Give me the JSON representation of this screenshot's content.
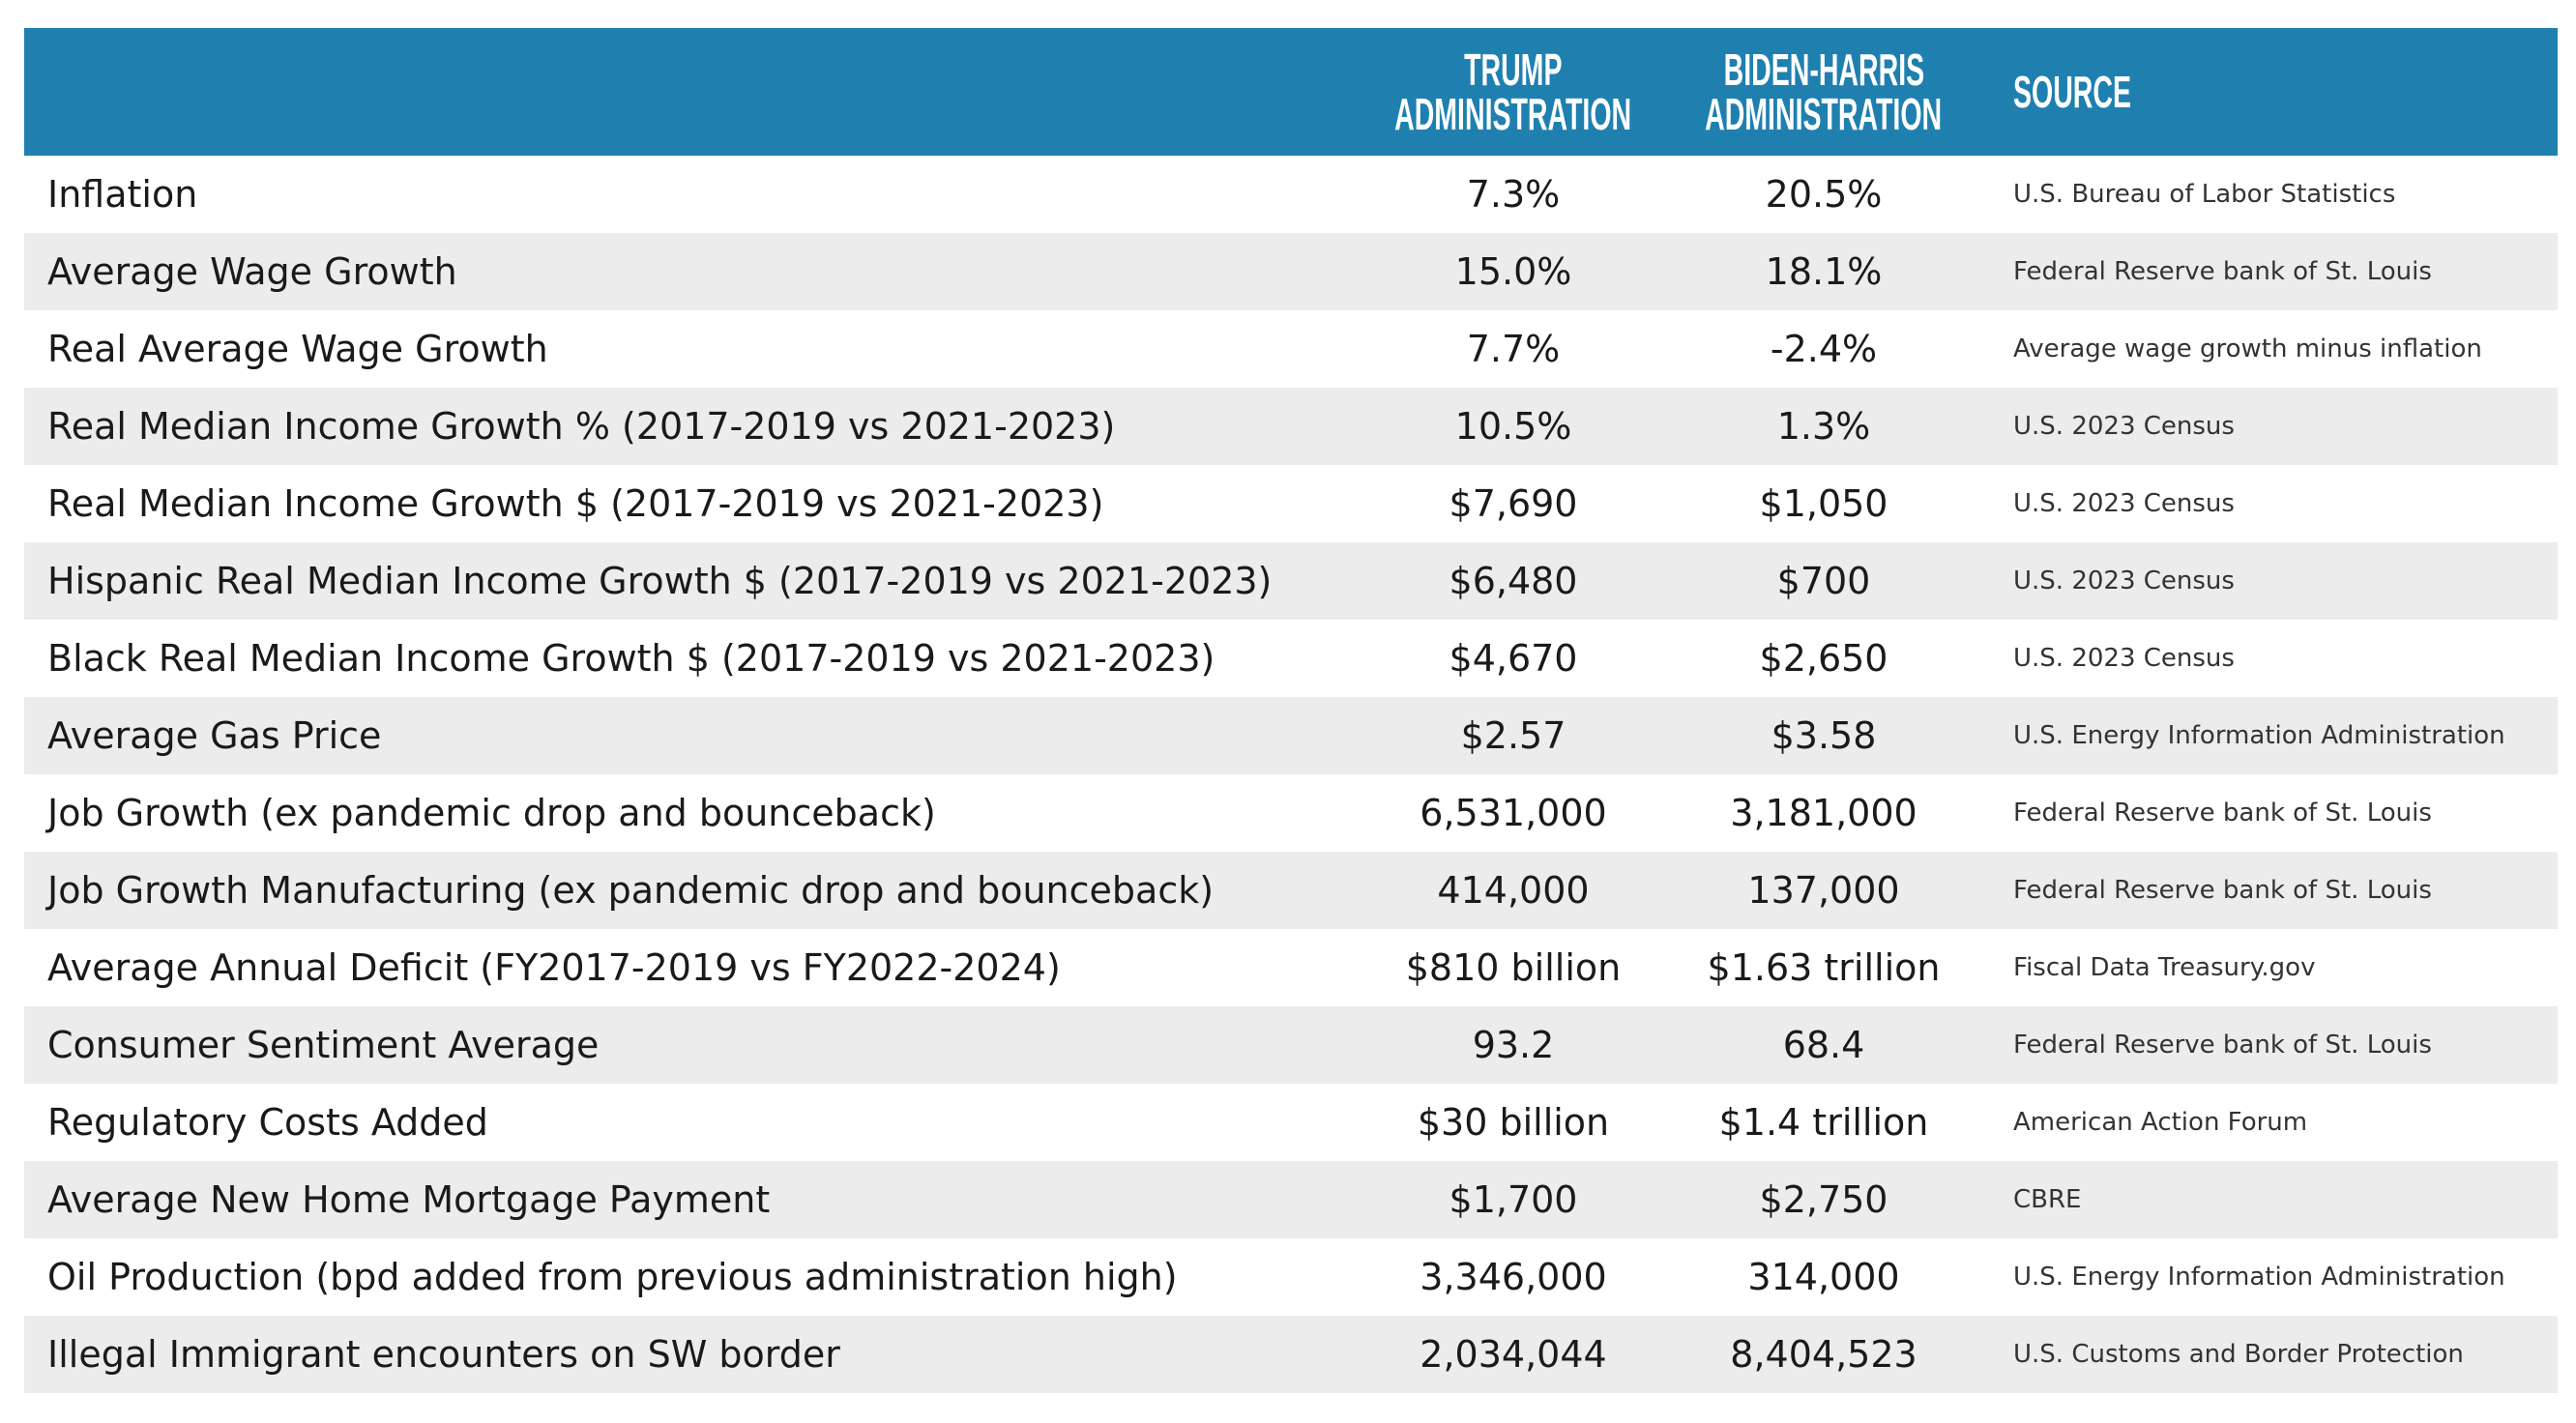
{
  "header": {
    "columns": [
      [
        "TRUMP",
        "ADMINISTRATION"
      ],
      [
        "BIDEN-HARRIS",
        "ADMINISTRATION"
      ],
      [
        "SOURCE"
      ]
    ]
  },
  "table": {
    "rows": [
      [
        "Inflation",
        "7.3%",
        "20.5%",
        "U.S. Bureau of Labor Statistics"
      ],
      [
        "Average Wage Growth",
        "15.0%",
        "18.1%",
        "Federal Reserve bank of St. Louis"
      ],
      [
        "Real Average Wage Growth",
        "7.7%",
        "-2.4%",
        "Average wage growth minus inflation"
      ],
      [
        "Real Median Income Growth % (2017-2019 vs 2021-2023)",
        "10.5%",
        "1.3%",
        "U.S. 2023 Census"
      ],
      [
        "Real Median Income Growth $ (2017-2019 vs 2021-2023)",
        "$7,690",
        "$1,050",
        "U.S. 2023 Census"
      ],
      [
        "Hispanic Real Median Income Growth $ (2017-2019 vs 2021-2023)",
        "$6,480",
        "$700",
        "U.S. 2023 Census"
      ],
      [
        "Black Real Median Income Growth $ (2017-2019 vs 2021-2023)",
        "$4,670",
        "$2,650",
        "U.S. 2023 Census"
      ],
      [
        "Average Gas Price",
        "$2.57",
        "$3.58",
        "U.S. Energy Information Administration"
      ],
      [
        "Job Growth (ex pandemic drop and bounceback)",
        "6,531,000",
        "3,181,000",
        "Federal Reserve bank of St. Louis"
      ],
      [
        "Job Growth Manufacturing (ex pandemic drop and bounceback)",
        "414,000",
        "137,000",
        "Federal Reserve bank of St. Louis"
      ],
      [
        "Average Annual Deficit (FY2017-2019 vs FY2022-2024)",
        "$810 billion",
        "$1.63 trillion",
        "Fiscal Data Treasury.gov"
      ],
      [
        "Consumer Sentiment Average",
        "93.2",
        "68.4",
        "Federal Reserve bank of St. Louis"
      ],
      [
        "Regulatory Costs Added",
        "$30 billion",
        "$1.4 trillion",
        "American Action Forum"
      ],
      [
        "Average New Home Mortgage Payment",
        "$1,700",
        "$2,750",
        "CBRE"
      ],
      [
        "Oil Production (bpd added from previous administration high)",
        "3,346,000",
        "314,000",
        "U.S. Energy Information Administration"
      ],
      [
        "Illegal Immigrant encounters on SW border",
        "2,034,044",
        "8,404,523",
        "U.S. Customs and Border Protection"
      ]
    ]
  }
}
